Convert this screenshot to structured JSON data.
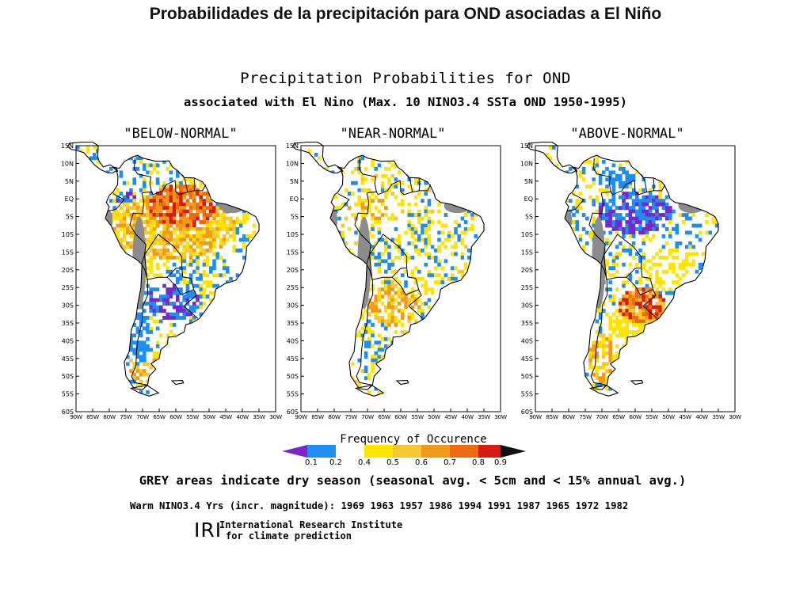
{
  "slide_title": "Probabilidades de la precipitación para OND asociadas a El Niño",
  "figure": {
    "title": "Precipitation Probabilities for OND",
    "subtitle": "associated with El Nino (Max. 10 NINO3.4 SSTa OND 1950-1995)"
  },
  "panels": [
    {
      "title": "\"BELOW-NORMAL\""
    },
    {
      "title": "\"NEAR-NORMAL\""
    },
    {
      "title": "\"ABOVE-NORMAL\""
    }
  ],
  "axes": {
    "lat_labels": [
      "15N",
      "10N",
      "5N",
      "EQ",
      "5S",
      "10S",
      "15S",
      "20S",
      "25S",
      "30S",
      "35S",
      "40S",
      "45S",
      "50S",
      "55S",
      "60S"
    ],
    "lon_labels": [
      "90W",
      "85W",
      "80W",
      "75W",
      "70W",
      "65W",
      "60W",
      "55W",
      "50W",
      "45W",
      "40W",
      "35W",
      "30W"
    ]
  },
  "legend": {
    "title": "Frequency of Occurence",
    "ticks": [
      "0.1",
      "0.2",
      "0.4",
      "0.5",
      "0.6",
      "0.7",
      "0.8",
      "0.9"
    ],
    "colors": [
      "#7a26c9",
      "#1e8ff0",
      "#ffffff",
      "#ffe400",
      "#f8c832",
      "#f09a1a",
      "#ee6a10",
      "#d81a10",
      "#111111"
    ]
  },
  "notes": {
    "grey": "GREY areas indicate dry season (seasonal avg. < 5cm and < 15% annual avg.)",
    "warm_years": "Warm NINO3.4 Yrs (incr. magnitude): 1969 1963 1957 1986 1994 1991 1987 1965 1972 1982"
  },
  "institute": {
    "logo": "IRI",
    "line1": "International Research Institute",
    "line2": "for climate prediction"
  }
}
